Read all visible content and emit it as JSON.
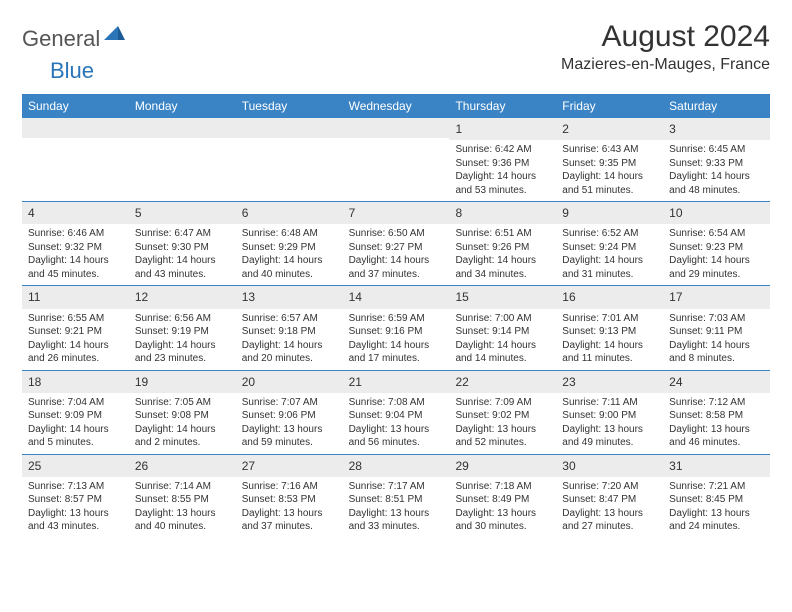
{
  "logo": {
    "text1": "General",
    "text2": "Blue"
  },
  "title": "August 2024",
  "location": "Mazieres-en-Mauges, France",
  "colors": {
    "header_bg": "#3a84c5",
    "daynum_bg": "#ececec",
    "logo_blue": "#2a74b8",
    "logo_gray": "#555555",
    "text": "#333333"
  },
  "weekdays": [
    "Sunday",
    "Monday",
    "Tuesday",
    "Wednesday",
    "Thursday",
    "Friday",
    "Saturday"
  ],
  "weeks": [
    [
      null,
      null,
      null,
      null,
      {
        "d": "1",
        "sr": "6:42 AM",
        "ss": "9:36 PM",
        "dl": "14 hours and 53 minutes."
      },
      {
        "d": "2",
        "sr": "6:43 AM",
        "ss": "9:35 PM",
        "dl": "14 hours and 51 minutes."
      },
      {
        "d": "3",
        "sr": "6:45 AM",
        "ss": "9:33 PM",
        "dl": "14 hours and 48 minutes."
      }
    ],
    [
      {
        "d": "4",
        "sr": "6:46 AM",
        "ss": "9:32 PM",
        "dl": "14 hours and 45 minutes."
      },
      {
        "d": "5",
        "sr": "6:47 AM",
        "ss": "9:30 PM",
        "dl": "14 hours and 43 minutes."
      },
      {
        "d": "6",
        "sr": "6:48 AM",
        "ss": "9:29 PM",
        "dl": "14 hours and 40 minutes."
      },
      {
        "d": "7",
        "sr": "6:50 AM",
        "ss": "9:27 PM",
        "dl": "14 hours and 37 minutes."
      },
      {
        "d": "8",
        "sr": "6:51 AM",
        "ss": "9:26 PM",
        "dl": "14 hours and 34 minutes."
      },
      {
        "d": "9",
        "sr": "6:52 AM",
        "ss": "9:24 PM",
        "dl": "14 hours and 31 minutes."
      },
      {
        "d": "10",
        "sr": "6:54 AM",
        "ss": "9:23 PM",
        "dl": "14 hours and 29 minutes."
      }
    ],
    [
      {
        "d": "11",
        "sr": "6:55 AM",
        "ss": "9:21 PM",
        "dl": "14 hours and 26 minutes."
      },
      {
        "d": "12",
        "sr": "6:56 AM",
        "ss": "9:19 PM",
        "dl": "14 hours and 23 minutes."
      },
      {
        "d": "13",
        "sr": "6:57 AM",
        "ss": "9:18 PM",
        "dl": "14 hours and 20 minutes."
      },
      {
        "d": "14",
        "sr": "6:59 AM",
        "ss": "9:16 PM",
        "dl": "14 hours and 17 minutes."
      },
      {
        "d": "15",
        "sr": "7:00 AM",
        "ss": "9:14 PM",
        "dl": "14 hours and 14 minutes."
      },
      {
        "d": "16",
        "sr": "7:01 AM",
        "ss": "9:13 PM",
        "dl": "14 hours and 11 minutes."
      },
      {
        "d": "17",
        "sr": "7:03 AM",
        "ss": "9:11 PM",
        "dl": "14 hours and 8 minutes."
      }
    ],
    [
      {
        "d": "18",
        "sr": "7:04 AM",
        "ss": "9:09 PM",
        "dl": "14 hours and 5 minutes."
      },
      {
        "d": "19",
        "sr": "7:05 AM",
        "ss": "9:08 PM",
        "dl": "14 hours and 2 minutes."
      },
      {
        "d": "20",
        "sr": "7:07 AM",
        "ss": "9:06 PM",
        "dl": "13 hours and 59 minutes."
      },
      {
        "d": "21",
        "sr": "7:08 AM",
        "ss": "9:04 PM",
        "dl": "13 hours and 56 minutes."
      },
      {
        "d": "22",
        "sr": "7:09 AM",
        "ss": "9:02 PM",
        "dl": "13 hours and 52 minutes."
      },
      {
        "d": "23",
        "sr": "7:11 AM",
        "ss": "9:00 PM",
        "dl": "13 hours and 49 minutes."
      },
      {
        "d": "24",
        "sr": "7:12 AM",
        "ss": "8:58 PM",
        "dl": "13 hours and 46 minutes."
      }
    ],
    [
      {
        "d": "25",
        "sr": "7:13 AM",
        "ss": "8:57 PM",
        "dl": "13 hours and 43 minutes."
      },
      {
        "d": "26",
        "sr": "7:14 AM",
        "ss": "8:55 PM",
        "dl": "13 hours and 40 minutes."
      },
      {
        "d": "27",
        "sr": "7:16 AM",
        "ss": "8:53 PM",
        "dl": "13 hours and 37 minutes."
      },
      {
        "d": "28",
        "sr": "7:17 AM",
        "ss": "8:51 PM",
        "dl": "13 hours and 33 minutes."
      },
      {
        "d": "29",
        "sr": "7:18 AM",
        "ss": "8:49 PM",
        "dl": "13 hours and 30 minutes."
      },
      {
        "d": "30",
        "sr": "7:20 AM",
        "ss": "8:47 PM",
        "dl": "13 hours and 27 minutes."
      },
      {
        "d": "31",
        "sr": "7:21 AM",
        "ss": "8:45 PM",
        "dl": "13 hours and 24 minutes."
      }
    ]
  ],
  "labels": {
    "sunrise": "Sunrise:",
    "sunset": "Sunset:",
    "daylight": "Daylight:"
  }
}
